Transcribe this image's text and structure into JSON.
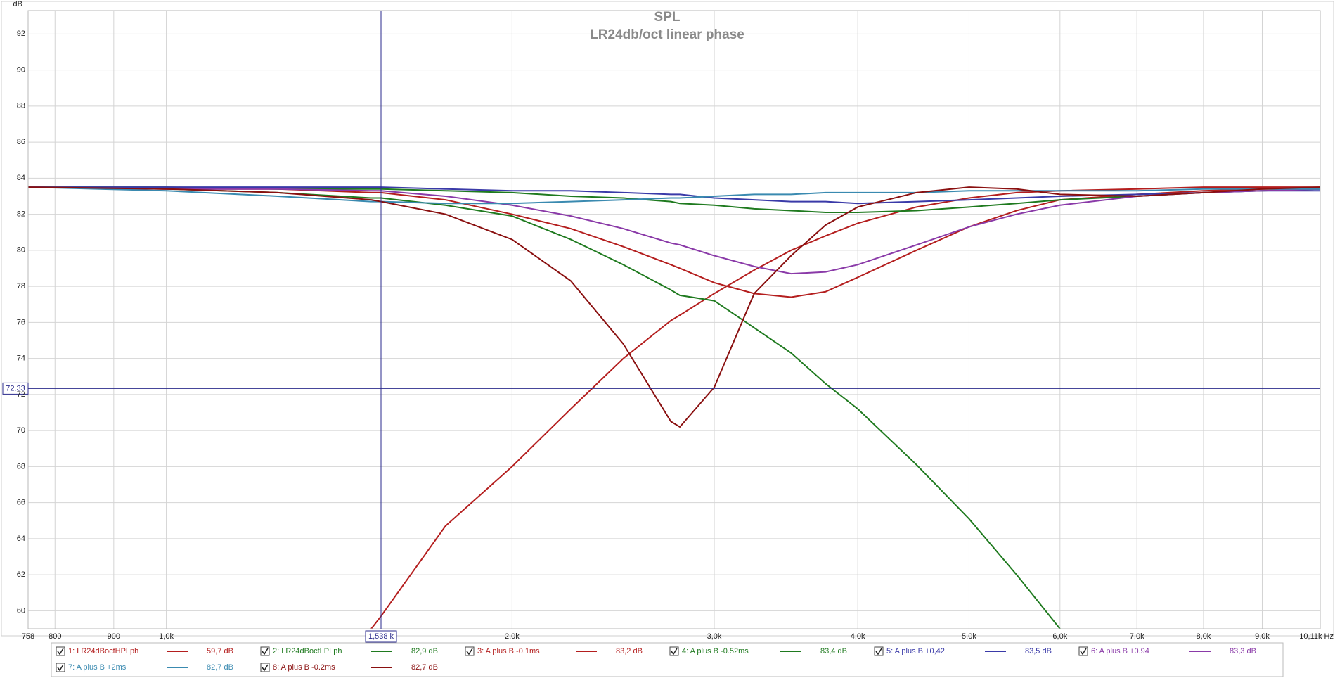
{
  "chart_data": {
    "type": "line",
    "title": "SPL",
    "subtitle": "LR24db/oct linear phase",
    "ylabel": "dB",
    "xscale": "log",
    "grid": true,
    "x": [
      758,
      1000,
      1250,
      1508,
      1538,
      1750,
      2000,
      2250,
      2500,
      2750,
      2800,
      3000,
      3250,
      3500,
      3750,
      4000,
      4500,
      5000,
      5500,
      6000,
      7000,
      8000,
      9000,
      10110
    ],
    "xlim": [
      758,
      10110
    ],
    "xticks": [
      758,
      800,
      900,
      {
        "value": 1000,
        "label": "1,0k"
      },
      {
        "value": 2000,
        "label": "2,0k"
      },
      {
        "value": 3000,
        "label": "3,0k"
      },
      {
        "value": 4000,
        "label": "4,0k"
      },
      {
        "value": 5000,
        "label": "5,0k"
      },
      {
        "value": 6000,
        "label": "6,0k"
      },
      {
        "value": 7000,
        "label": "7,0k"
      },
      {
        "value": 8000,
        "label": "8,0k"
      },
      {
        "value": 9000,
        "label": "9,0k"
      },
      {
        "value": 10110,
        "label": "10,11k Hz"
      }
    ],
    "ylim": [
      59,
      93.3
    ],
    "yticks": [
      60,
      62,
      64,
      66,
      68,
      70,
      72,
      74,
      76,
      78,
      80,
      82,
      84,
      86,
      88,
      90,
      92
    ],
    "cursor": {
      "x": {
        "value": 1538,
        "label": "1,538 k"
      },
      "y": 72.33,
      "color": "#2b2b8c"
    },
    "series": [
      {
        "name": "1: LR24dBoctHPLph",
        "color": "#b41e1e",
        "readout": {
          "value": 59.7,
          "label": "59,7 dB"
        },
        "values": [
          null,
          null,
          null,
          59.0,
          59.7,
          64.7,
          68.0,
          71.2,
          74.0,
          76.1,
          76.4,
          77.6,
          78.9,
          80.0,
          80.8,
          81.5,
          82.4,
          82.9,
          83.2,
          83.3,
          83.4,
          83.5,
          83.5,
          83.5
        ]
      },
      {
        "name": "2: LR24dBoctLPLph",
        "color": "#1f7a1f",
        "readout": {
          "value": 82.9,
          "label": "82,9 dB"
        },
        "values": [
          83.5,
          83.4,
          83.2,
          82.9,
          82.9,
          82.5,
          81.9,
          80.6,
          79.2,
          77.8,
          77.5,
          77.2,
          75.7,
          74.3,
          72.6,
          71.2,
          68.1,
          65.1,
          62.0,
          59.0,
          null,
          null,
          null,
          null
        ]
      },
      {
        "name": "3: A plus B -0.1ms",
        "color": "#b41e1e",
        "readout": {
          "value": 83.2,
          "label": "83,2 dB"
        },
        "values": [
          83.5,
          83.4,
          83.4,
          83.2,
          83.2,
          82.8,
          82.0,
          81.2,
          80.2,
          79.2,
          79.0,
          78.2,
          77.6,
          77.4,
          77.7,
          78.5,
          80.0,
          81.3,
          82.2,
          82.8,
          83.1,
          83.3,
          83.4,
          83.4
        ]
      },
      {
        "name": "4: A plus B -0.52ms",
        "color": "#1f7a1f",
        "readout": {
          "value": 83.4,
          "label": "83,4 dB"
        },
        "values": [
          83.5,
          83.5,
          83.4,
          83.4,
          83.4,
          83.3,
          83.2,
          83.0,
          82.9,
          82.7,
          82.6,
          82.5,
          82.3,
          82.2,
          82.1,
          82.1,
          82.2,
          82.4,
          82.6,
          82.8,
          83.0,
          83.2,
          83.3,
          83.4
        ]
      },
      {
        "name": "5: A plus B +0,42",
        "color": "#3a3aa8",
        "readout": {
          "value": 83.5,
          "label": "83,5 dB"
        },
        "values": [
          83.5,
          83.5,
          83.5,
          83.5,
          83.5,
          83.4,
          83.3,
          83.3,
          83.2,
          83.1,
          83.1,
          82.9,
          82.8,
          82.7,
          82.7,
          82.6,
          82.7,
          82.8,
          82.9,
          83.0,
          83.1,
          83.2,
          83.3,
          83.3
        ]
      },
      {
        "name": "6: A plus B +0.94",
        "color": "#8a3aa8",
        "readout": {
          "value": 83.3,
          "label": "83,3 dB"
        },
        "values": [
          83.5,
          83.4,
          83.4,
          83.3,
          83.3,
          83.0,
          82.5,
          81.9,
          81.2,
          80.4,
          80.3,
          79.7,
          79.1,
          78.7,
          78.8,
          79.2,
          80.3,
          81.3,
          82.0,
          82.5,
          83.0,
          83.2,
          83.3,
          83.4
        ]
      },
      {
        "name": "7: A plus B +2ms",
        "color": "#3a8ab0",
        "readout": {
          "value": 82.7,
          "label": "82,7 dB"
        },
        "values": [
          83.5,
          83.3,
          83.0,
          82.7,
          82.7,
          82.6,
          82.6,
          82.7,
          82.8,
          82.9,
          82.9,
          83.0,
          83.1,
          83.1,
          83.2,
          83.2,
          83.2,
          83.3,
          83.3,
          83.3,
          83.3,
          83.4,
          83.4,
          83.4
        ]
      },
      {
        "name": "8: A plus B -0.2ms",
        "color": "#8a1010",
        "readout": {
          "value": 82.7,
          "label": "82,7 dB"
        },
        "values": [
          83.5,
          83.4,
          83.2,
          82.8,
          82.7,
          82.0,
          80.6,
          78.3,
          74.8,
          70.5,
          70.2,
          72.4,
          77.6,
          79.7,
          81.4,
          82.4,
          83.2,
          83.5,
          83.4,
          83.1,
          83.0,
          83.2,
          83.4,
          83.5
        ]
      }
    ]
  }
}
